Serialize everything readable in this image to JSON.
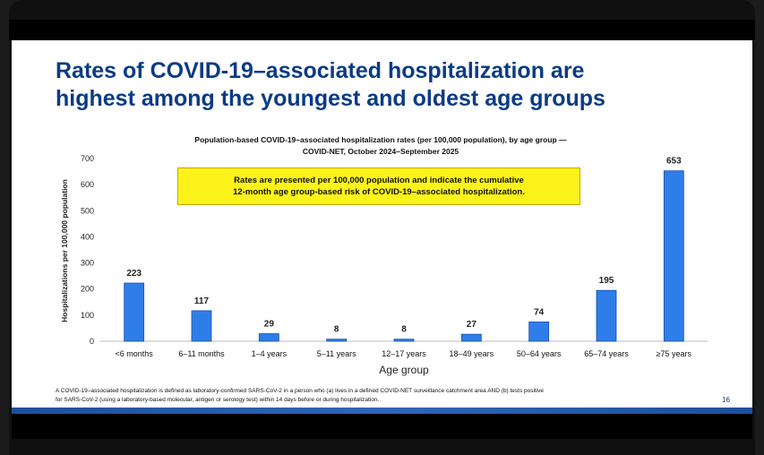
{
  "slide": {
    "title_line1": "Rates of COVID-19–associated hospitalization are",
    "title_line2": "highest among the youngest and oldest age groups",
    "note_line1": "Rates are presented per 100,000 population and indicate the cumulative",
    "note_line2": "12-month age group-based risk of COVID-19–associated hospitalization.",
    "footnote_line1": "A COVID-19–associated hospitalization is defined as laboratory-confirmed SARS-CoV-2 in a person who (a) lives in a defined COVID-NET surveillance catchment area AND (b) tests positive",
    "footnote_line2": "for SARS-CoV-2 (using a laboratory-based molecular, antigen or serology test) within 14 days before or during hospitalization.",
    "page_number": "16"
  },
  "chart_data": {
    "type": "bar",
    "title_line1": "Population-based COVID-19–associated hospitalization rates (per 100,000 population), by age group —",
    "title_line2": "COVID-NET, October 2024–September 2025",
    "xlabel": "Age group",
    "ylabel": "Hospitalizations per 100,000 population",
    "categories": [
      "<6 months",
      "6–11 months",
      "1–4 years",
      "5–11 years",
      "12–17 years",
      "18–49 years",
      "50–64 years",
      "65–74 years",
      "≥75 years"
    ],
    "values": [
      223,
      117,
      29,
      8,
      8,
      27,
      74,
      195,
      653
    ],
    "ylim": [
      0,
      700
    ],
    "yticks": [
      0,
      100,
      200,
      300,
      400,
      500,
      600,
      700
    ],
    "bar_color": "#2f7de8",
    "grid": false,
    "legend": "none"
  }
}
